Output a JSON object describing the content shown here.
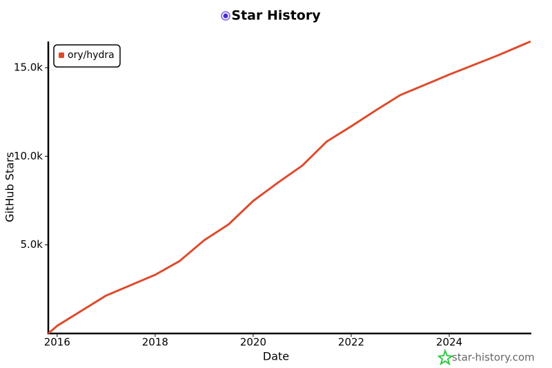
{
  "chart_data": {
    "type": "line",
    "title": "Star History",
    "x_label": "Date",
    "y_label": "GitHub Stars",
    "watermark": "star-history.com",
    "legend": "top-left",
    "x": [
      2015.82,
      2016,
      2017,
      2018,
      2018.5,
      2019,
      2019.5,
      2020,
      2020.5,
      2021,
      2021.5,
      2022,
      2022.5,
      2023,
      2024,
      2025,
      2025.66
    ],
    "series": [
      {
        "name": "ory/hydra",
        "color": "#dd4b2d",
        "values": [
          0,
          430,
          2140,
          3310,
          4090,
          5260,
          6160,
          7480,
          8500,
          9470,
          10830,
          11690,
          12590,
          13450,
          14610,
          15700,
          16480
        ]
      }
    ],
    "xlim": [
      2015.82,
      2025.66
    ],
    "xticks": [
      2016,
      2018,
      2020,
      2022,
      2024
    ],
    "ylim": [
      0,
      16480
    ],
    "yticks": [
      {
        "value": 5000,
        "label": "5.0k"
      },
      {
        "value": 10000,
        "label": "10.0k"
      },
      {
        "value": 15000,
        "label": "15.0k"
      }
    ]
  }
}
